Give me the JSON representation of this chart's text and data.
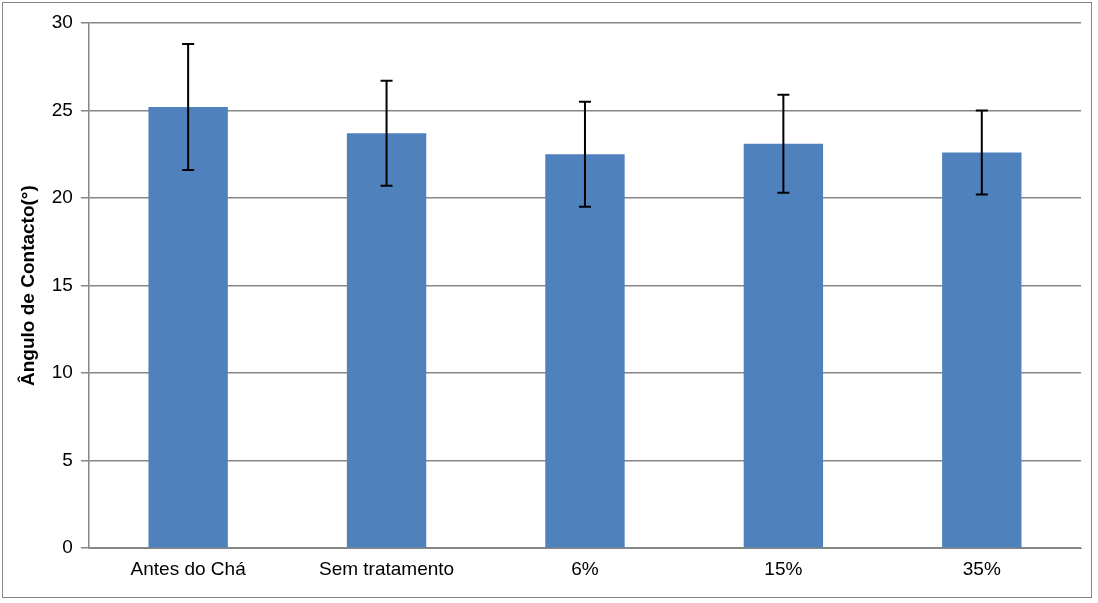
{
  "chart_data": {
    "type": "bar",
    "ylabel": "Ângulo de Contacto(°)",
    "categories": [
      "Antes do Chá",
      "Sem tratamento",
      "6%",
      "15%",
      "35%"
    ],
    "values": [
      25.2,
      23.7,
      22.5,
      23.1,
      22.6
    ],
    "errors": [
      3.6,
      3.0,
      3.0,
      2.8,
      2.4
    ],
    "color": "#4f81bd",
    "ylim": [
      0,
      30
    ],
    "yticks": [
      0,
      5,
      10,
      15,
      20,
      25,
      30
    ],
    "grid": "y",
    "legend": false
  }
}
